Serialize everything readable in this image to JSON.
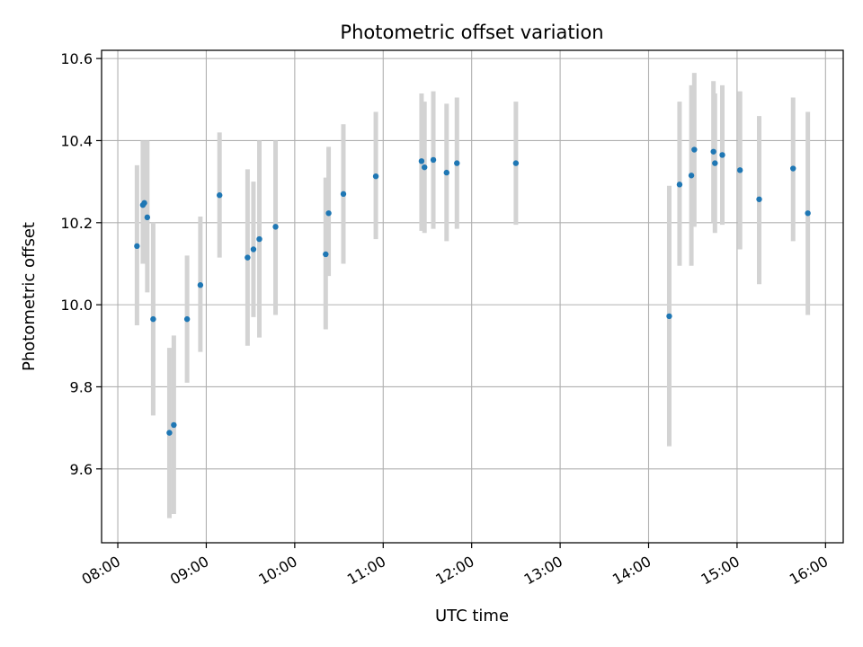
{
  "chart_data": {
    "type": "scatter",
    "title": "Photometric offset variation",
    "xlabel": "UTC time",
    "ylabel": "Photometric offset",
    "x_unit": "time of day (HH:MM, UTC)",
    "xlim": [
      "07:49",
      "16:12"
    ],
    "ylim": [
      9.42,
      10.62
    ],
    "x_ticks": [
      "08:00",
      "09:00",
      "10:00",
      "11:00",
      "12:00",
      "13:00",
      "14:00",
      "15:00",
      "16:00"
    ],
    "y_ticks": [
      "9.6",
      "9.8",
      "10.0",
      "10.2",
      "10.4",
      "10.6"
    ],
    "grid": true,
    "legend": false,
    "colors": {
      "point": "#1f77b4",
      "errorbar": "#d3d3d3",
      "grid": "#b0b0b0"
    },
    "points": [
      {
        "x": "08:13",
        "y": 10.143,
        "low": 9.95,
        "high": 10.34
      },
      {
        "x": "08:17",
        "y": 10.243,
        "low": 10.1,
        "high": 10.4
      },
      {
        "x": "08:18",
        "y": 10.248,
        "low": 10.1,
        "high": 10.4
      },
      {
        "x": "08:20",
        "y": 10.213,
        "low": 10.03,
        "high": 10.4
      },
      {
        "x": "08:24",
        "y": 9.965,
        "low": 9.73,
        "high": 10.2
      },
      {
        "x": "08:35",
        "y": 9.688,
        "low": 9.48,
        "high": 9.895
      },
      {
        "x": "08:38",
        "y": 9.707,
        "low": 9.49,
        "high": 9.925
      },
      {
        "x": "08:47",
        "y": 9.965,
        "low": 9.81,
        "high": 10.12
      },
      {
        "x": "08:56",
        "y": 10.048,
        "low": 9.885,
        "high": 10.215
      },
      {
        "x": "09:09",
        "y": 10.267,
        "low": 10.115,
        "high": 10.42
      },
      {
        "x": "09:28",
        "y": 10.115,
        "low": 9.9,
        "high": 10.33
      },
      {
        "x": "09:32",
        "y": 10.135,
        "low": 9.97,
        "high": 10.3
      },
      {
        "x": "09:36",
        "y": 10.16,
        "low": 9.92,
        "high": 10.4
      },
      {
        "x": "09:47",
        "y": 10.19,
        "low": 9.975,
        "high": 10.4
      },
      {
        "x": "10:21",
        "y": 10.123,
        "low": 9.94,
        "high": 10.31
      },
      {
        "x": "10:23",
        "y": 10.223,
        "low": 10.07,
        "high": 10.385
      },
      {
        "x": "10:33",
        "y": 10.27,
        "low": 10.1,
        "high": 10.44
      },
      {
        "x": "10:55",
        "y": 10.313,
        "low": 10.16,
        "high": 10.47
      },
      {
        "x": "11:26",
        "y": 10.35,
        "low": 10.18,
        "high": 10.515
      },
      {
        "x": "11:28",
        "y": 10.335,
        "low": 10.175,
        "high": 10.495
      },
      {
        "x": "11:34",
        "y": 10.353,
        "low": 10.185,
        "high": 10.52
      },
      {
        "x": "11:43",
        "y": 10.322,
        "low": 10.155,
        "high": 10.49
      },
      {
        "x": "11:50",
        "y": 10.345,
        "low": 10.185,
        "high": 10.505
      },
      {
        "x": "12:30",
        "y": 10.345,
        "low": 10.195,
        "high": 10.495
      },
      {
        "x": "14:14",
        "y": 9.972,
        "low": 9.655,
        "high": 10.29
      },
      {
        "x": "14:21",
        "y": 10.293,
        "low": 10.095,
        "high": 10.495
      },
      {
        "x": "14:29",
        "y": 10.315,
        "low": 10.095,
        "high": 10.535
      },
      {
        "x": "14:31",
        "y": 10.378,
        "low": 10.19,
        "high": 10.565
      },
      {
        "x": "14:44",
        "y": 10.373,
        "low": 10.2,
        "high": 10.545
      },
      {
        "x": "14:45",
        "y": 10.345,
        "low": 10.175,
        "high": 10.515
      },
      {
        "x": "14:50",
        "y": 10.365,
        "low": 10.195,
        "high": 10.535
      },
      {
        "x": "15:02",
        "y": 10.328,
        "low": 10.135,
        "high": 10.52
      },
      {
        "x": "15:15",
        "y": 10.257,
        "low": 10.05,
        "high": 10.46
      },
      {
        "x": "15:38",
        "y": 10.332,
        "low": 10.155,
        "high": 10.505
      },
      {
        "x": "15:48",
        "y": 10.223,
        "low": 9.975,
        "high": 10.47
      }
    ]
  }
}
